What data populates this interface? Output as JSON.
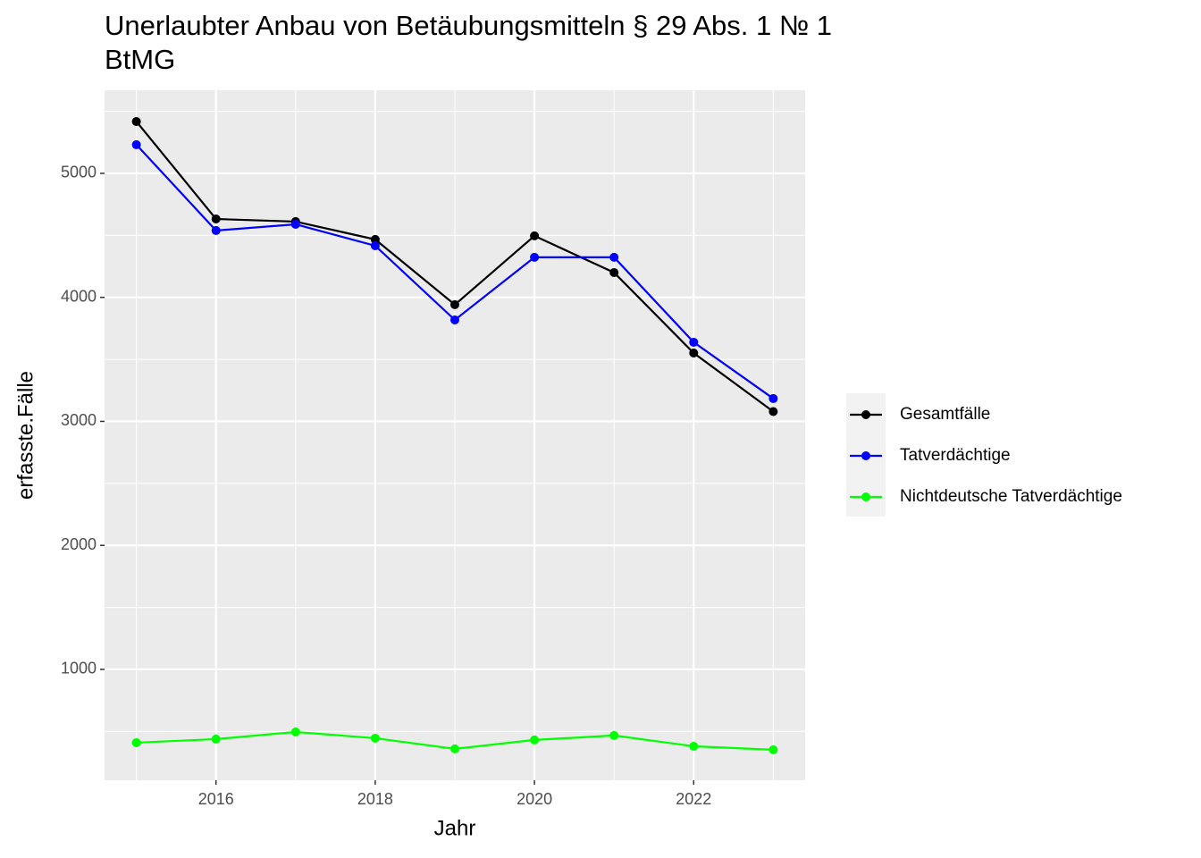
{
  "chart_data": {
    "type": "line",
    "title": "Unerlaubter Anbau von Betäubungsmitteln § 29 Abs. 1 № 1\nBtMG",
    "x_label": "Jahr",
    "y_label": "erfasste.Fälle",
    "x": [
      2015,
      2016,
      2017,
      2018,
      2019,
      2020,
      2021,
      2022,
      2023
    ],
    "series": [
      {
        "name": "Gesamtfälle",
        "color": "#000000",
        "values": [
          5418,
          4632,
          4611,
          4467,
          3941,
          4496,
          4200,
          3551,
          3079
        ]
      },
      {
        "name": "Tatverdächtige",
        "color": "#0000ff",
        "values": [
          5231,
          4539,
          4589,
          4416,
          3818,
          4323,
          4323,
          3638,
          3184
        ]
      },
      {
        "name": "Nichtdeutsche Tatverdächtige",
        "color": "#00ff00",
        "values": [
          409,
          438,
          495,
          445,
          359,
          431,
          467,
          380,
          352
        ]
      }
    ],
    "xlim": [
      2014.6,
      2023.4
    ],
    "xticks": [
      2016,
      2018,
      2020,
      2022
    ],
    "ylim": [
      106,
      5670
    ],
    "yticks": [
      1000,
      2000,
      3000,
      4000,
      5000
    ],
    "grid": true,
    "legend": "right"
  }
}
